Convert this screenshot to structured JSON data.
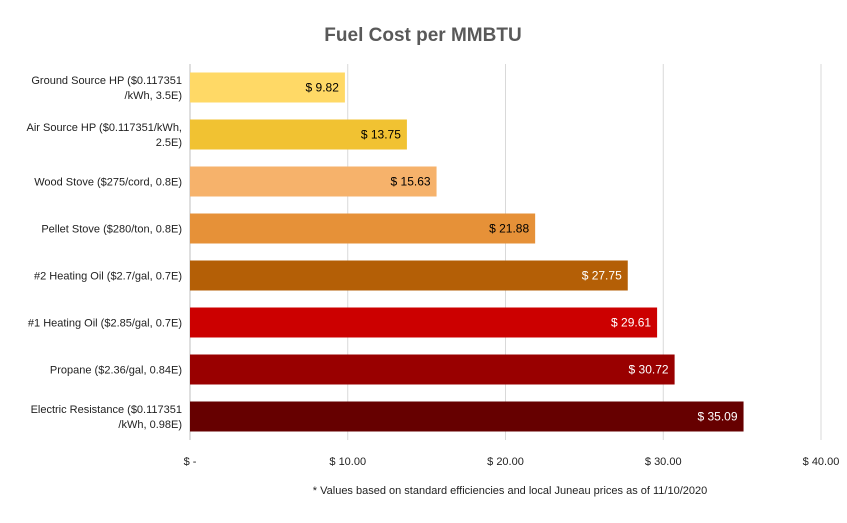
{
  "chart_data": {
    "type": "bar",
    "orientation": "horizontal",
    "title": "Fuel Cost per MMBTU",
    "categories": [
      [
        "Ground Source HP ($0.117351",
        "/kWh, 3.5E)"
      ],
      [
        "Air Source HP ($0.117351/kWh,",
        "2.5E)"
      ],
      [
        "Wood Stove ($275/cord, 0.8E)"
      ],
      [
        "Pellet Stove ($280/ton, 0.8E)"
      ],
      [
        "#2 Heating Oil ($2.7/gal, 0.7E)"
      ],
      [
        "#1 Heating Oil ($2.85/gal, 0.7E)"
      ],
      [
        "Propane ($2.36/gal, 0.84E)"
      ],
      [
        "Electric Resistance ($0.117351",
        "/kWh, 0.98E)"
      ]
    ],
    "values": [
      9.82,
      13.75,
      15.63,
      21.88,
      27.75,
      29.61,
      30.72,
      35.09
    ],
    "data_labels": [
      "$ 9.82",
      "$ 13.75",
      "$ 15.63",
      "$ 21.88",
      "$ 27.75",
      "$ 29.61",
      "$ 30.72",
      "$ 35.09"
    ],
    "bar_colors": [
      "#FFD966",
      "#F1C232",
      "#F6B26B",
      "#E69138",
      "#B45F06",
      "#CC0000",
      "#990000",
      "#660000"
    ],
    "label_colors": [
      "#000000",
      "#000000",
      "#000000",
      "#000000",
      "#ffffff",
      "#ffffff",
      "#ffffff",
      "#ffffff"
    ],
    "xlim": [
      0,
      40
    ],
    "xticks": [
      0,
      10,
      20,
      30,
      40
    ],
    "xtick_labels": [
      "$ -",
      "$ 10.00",
      "$ 20.00",
      "$ 30.00",
      "$ 40.00"
    ],
    "grid": true,
    "note": "* Values based on standard efficiencies and local Juneau prices as of 11/10/2020"
  }
}
